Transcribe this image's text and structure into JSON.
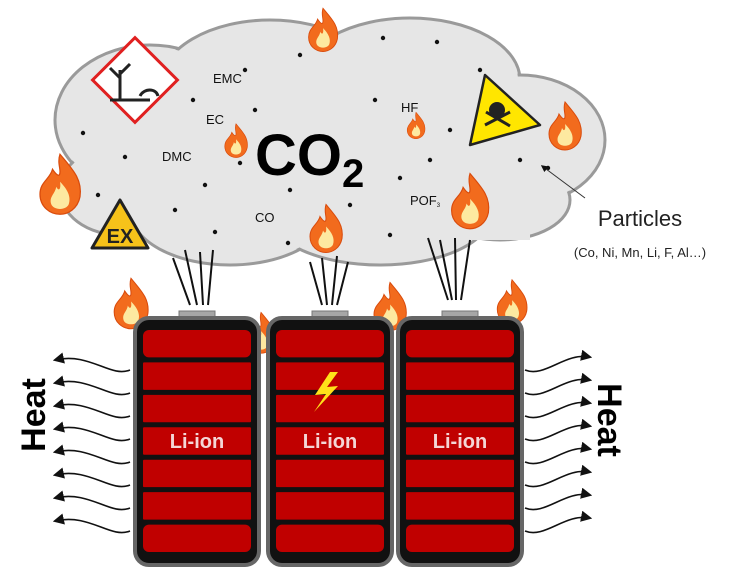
{
  "cloud": {
    "main_gas": {
      "formula": "CO",
      "subscript": "2"
    },
    "labels": [
      "EMC",
      "EC",
      "DMC",
      "HF",
      "CO"
    ],
    "pof": {
      "formula": "POF",
      "subscript": "3"
    }
  },
  "signs": {
    "explosive": "EX"
  },
  "particles": {
    "title": "Particles",
    "list": "(Co, Ni, Mn, Li, F, Al…)"
  },
  "heat": {
    "left": "Heat",
    "right": "Heat"
  },
  "batteries": [
    "Li-ion",
    "Li-ion",
    "Li-ion"
  ]
}
